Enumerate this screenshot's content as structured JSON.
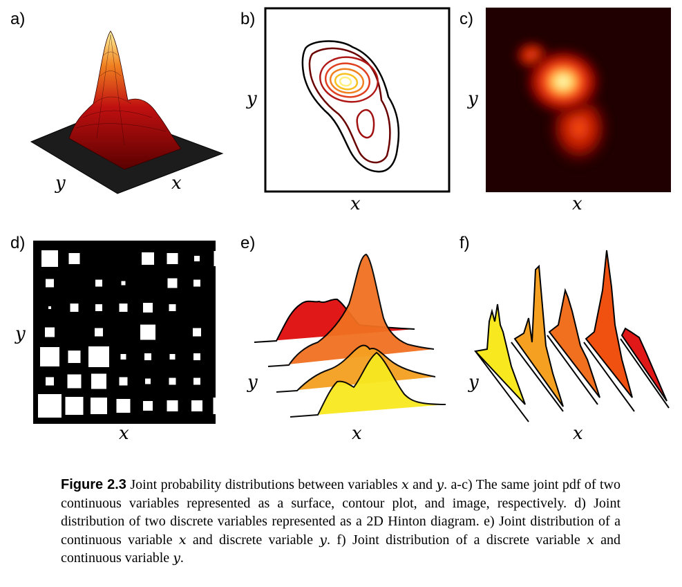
{
  "panels": {
    "a": {
      "label": "a)",
      "xlabel": "x",
      "ylabel": "y"
    },
    "b": {
      "label": "b)",
      "xlabel": "x",
      "ylabel": "y"
    },
    "c": {
      "label": "c)",
      "xlabel": "x",
      "ylabel": "y"
    },
    "d": {
      "label": "d)",
      "xlabel": "x",
      "ylabel": "y"
    },
    "e": {
      "label": "e)",
      "xlabel": "x",
      "ylabel": "y"
    },
    "f": {
      "label": "f)",
      "xlabel": "x",
      "ylabel": "y"
    }
  },
  "caption": {
    "figure": "Figure 2.3",
    "t1": " Joint probability distributions between variables ",
    "v1": "x",
    "t2": " and ",
    "v2": "y",
    "t3": ".  a-c) The same joint pdf of two continuous variables represented as a surface, contour plot, and image, respectively.  d) Joint distribution of two discrete variables represented as a 2D Hinton diagram.  e) Joint distribution of a continuous variable ",
    "v3": "x",
    "t4": " and discrete variable ",
    "v4": "y",
    "t5": ".  f) Joint distribution of a discrete variable ",
    "v5": "x",
    "t6": " and continuous variable ",
    "v6": "y",
    "t7": "."
  },
  "colors": {
    "dark_red": "#8b0000",
    "red": "#e02020",
    "orange": "#f07020",
    "amber": "#f5a020",
    "yellow": "#f8e820",
    "black": "#000000"
  }
}
